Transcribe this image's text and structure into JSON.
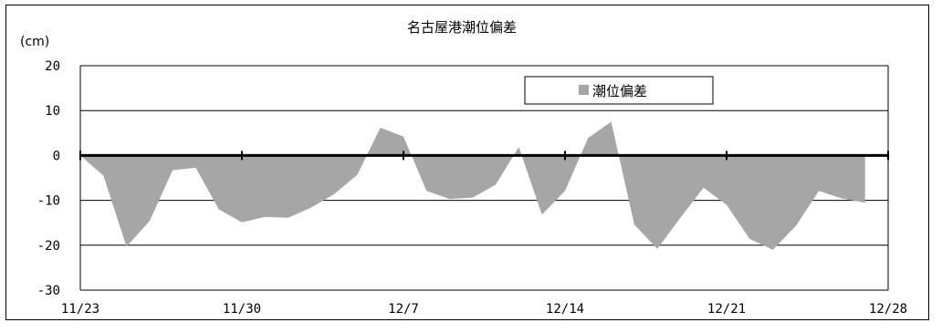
{
  "chart_data": {
    "type": "area",
    "title": "名古屋港潮位偏差",
    "ylabel": "(cm)",
    "ylim": [
      -30,
      20
    ],
    "yticks": [
      "20",
      "10",
      "0",
      "-10",
      "-20",
      "-30"
    ],
    "xlim": [
      "11/23",
      "12/28"
    ],
    "xticks": [
      "11/23",
      "11/30",
      "12/7",
      "12/14",
      "12/21",
      "12/28"
    ],
    "grid": "horizontal",
    "legend": {
      "position": "top-right",
      "label": "潮位偏差"
    },
    "series": [
      {
        "name": "潮位偏差",
        "color": "#a6a6a6",
        "x": [
          "11/23",
          "11/24",
          "11/25",
          "11/26",
          "11/27",
          "11/28",
          "11/29",
          "11/30",
          "12/1",
          "12/2",
          "12/3",
          "12/4",
          "12/5",
          "12/6",
          "12/7",
          "12/8",
          "12/9",
          "12/10",
          "12/11",
          "12/12",
          "12/13",
          "12/14",
          "12/15",
          "12/16",
          "12/17",
          "12/18",
          "12/19",
          "12/20",
          "12/21",
          "12/22",
          "12/23",
          "12/24",
          "12/25",
          "12/26",
          "12/27"
        ],
        "values": [
          0,
          -4.5,
          -20.3,
          -14.6,
          -3.3,
          -2.7,
          -12,
          -14.9,
          -13.7,
          -13.9,
          -11.6,
          -8.6,
          -4.3,
          6.2,
          4.2,
          -7.9,
          -9.7,
          -9.4,
          -6.5,
          1.9,
          -13.2,
          -7.9,
          3.9,
          7.5,
          -15.4,
          -20.8,
          -13.9,
          -7.2,
          -11,
          -18.6,
          -21,
          -15.7,
          -7.9,
          -9.6,
          -10.5
        ]
      }
    ]
  }
}
